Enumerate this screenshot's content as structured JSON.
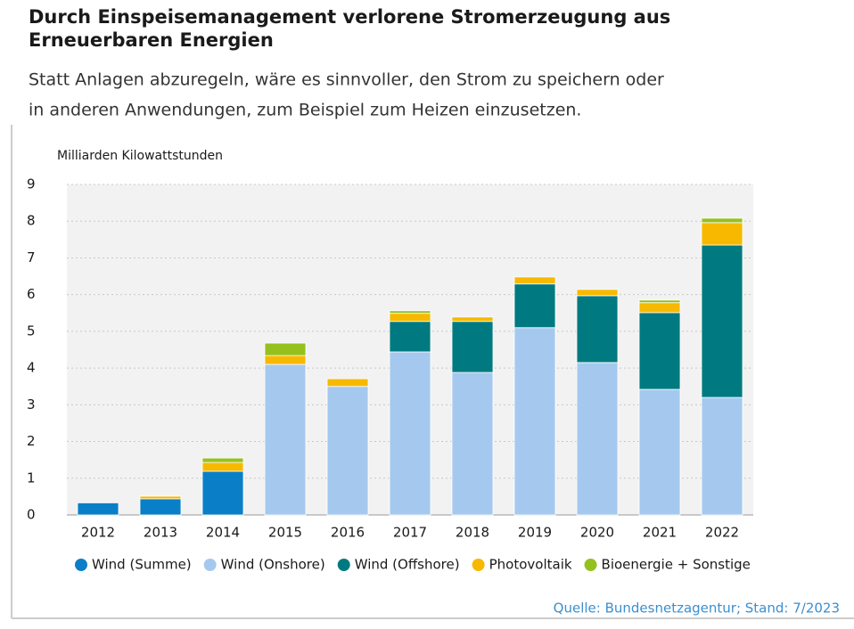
{
  "chart_data": {
    "type": "stacked_bar",
    "title": [
      "Durch Einspeisemanagement verlorene Stromerzeugung aus",
      "Erneuerbaren Energien"
    ],
    "subtitle": [
      "Statt Anlagen abzuregeln, wäre es sinnvoller, den Strom zu speichern oder",
      "in anderen Anwendungen, zum Beispiel zum Heizen einzusetzen."
    ],
    "y_label": "Milliarden Kilowattstunden",
    "categories": [
      "2012",
      "2013",
      "2014",
      "2015",
      "2016",
      "2017",
      "2018",
      "2019",
      "2020",
      "2021",
      "2022"
    ],
    "series": [
      {
        "name": "Wind (Summe)",
        "color": "#0a7fc8",
        "values": [
          0.33,
          0.44,
          1.19,
          null,
          null,
          null,
          null,
          null,
          null,
          null,
          null
        ]
      },
      {
        "name": "Wind (Onshore)",
        "color": "#a5c9ee",
        "values": [
          null,
          null,
          null,
          4.1,
          3.5,
          4.44,
          3.88,
          5.1,
          4.15,
          3.42,
          3.2
        ]
      },
      {
        "name": "Wind (Offshore)",
        "color": "#007a80",
        "values": [
          null,
          null,
          null,
          null,
          null,
          0.83,
          1.39,
          1.19,
          1.82,
          2.09,
          4.15
        ]
      },
      {
        "name": "Photovoltaik",
        "color": "#f7b900",
        "values": [
          null,
          0.07,
          0.24,
          0.24,
          0.21,
          0.22,
          0.12,
          0.19,
          0.17,
          0.27,
          0.61
        ]
      },
      {
        "name": "Bioenergie + Sonstige",
        "color": "#95c11f",
        "values": [
          null,
          null,
          0.12,
          0.34,
          null,
          0.07,
          null,
          null,
          null,
          0.07,
          0.12
        ]
      }
    ],
    "ylim": [
      0,
      9
    ],
    "yticks": [
      0,
      1,
      2,
      3,
      4,
      5,
      6,
      7,
      8,
      9
    ],
    "grid": true,
    "legend": "bottom",
    "source": "Quelle: Bundesnetzagentur; Stand: 7/2023"
  }
}
